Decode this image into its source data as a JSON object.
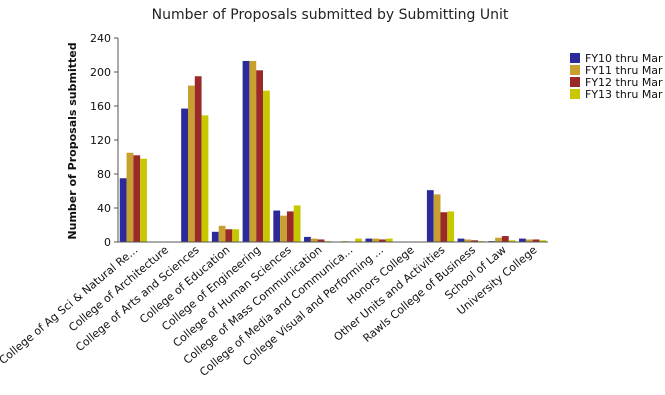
{
  "chart_data": {
    "type": "bar",
    "title": "Number of Proposals submitted by Submitting Unit",
    "xlabel": "",
    "ylabel": "Number of Proposals submitted",
    "ylim": [
      0,
      240
    ],
    "yticks": [
      0,
      40,
      80,
      120,
      160,
      200,
      240
    ],
    "grid": false,
    "legend_position": "right",
    "categories": [
      "College of Ag Sci & Natural Re...",
      "College of Architecture",
      "College of Arts and Sciences",
      "College of Education",
      "College of Engineering",
      "College of Human Sciences",
      "College of Mass Communication",
      "College of Media and Communica...",
      "College Visual and Performing ...",
      "Honors College",
      "Other Units and Activities",
      "Rawls College of Business",
      "School of Law",
      "University College"
    ],
    "series": [
      {
        "name": "FY10 thru Mar",
        "color": "#2a2a9a",
        "values": [
          75,
          0,
          157,
          12,
          213,
          37,
          6,
          0,
          4,
          0,
          61,
          4,
          1,
          4
        ]
      },
      {
        "name": "FY11 thru Mar",
        "color": "#c8a030",
        "values": [
          105,
          0,
          184,
          19,
          213,
          31,
          4,
          1,
          4,
          0,
          56,
          3,
          5,
          3
        ]
      },
      {
        "name": "FY12 thru Mar",
        "color": "#9a2a2a",
        "values": [
          102,
          0,
          195,
          15,
          202,
          36,
          3,
          0,
          3,
          0,
          35,
          2,
          7,
          3
        ]
      },
      {
        "name": "FY13 thru Mar",
        "color": "#c8c800",
        "values": [
          98,
          0,
          149,
          15,
          178,
          43,
          1,
          4,
          4,
          0,
          36,
          1,
          2,
          2
        ]
      }
    ]
  }
}
